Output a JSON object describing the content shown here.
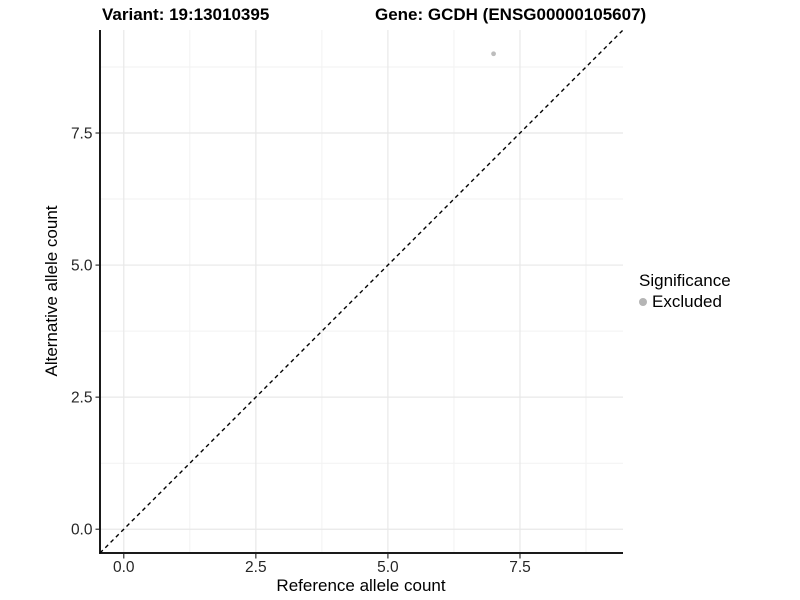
{
  "chart_data": {
    "type": "scatter",
    "title_left": "Variant: 19:13010395",
    "title_right": "Gene: GCDH (ENSG00000105607)",
    "xlabel": "Reference allele count",
    "ylabel": "Alternative allele count",
    "xlim": [
      -0.45,
      9.45
    ],
    "ylim": [
      -0.45,
      9.45
    ],
    "x_ticks": [
      0,
      2.5,
      5,
      7.5
    ],
    "x_tick_labels": [
      "0.0",
      "2.5",
      "5.0",
      "7.5"
    ],
    "y_ticks": [
      0,
      2.5,
      5,
      7.5
    ],
    "y_tick_labels": [
      "0.0",
      "2.5",
      "5.0",
      "7.5"
    ],
    "x_minor_ticks": [
      1.25,
      3.75,
      6.25,
      8.75
    ],
    "y_minor_ticks": [
      1.25,
      3.75,
      6.25,
      8.75
    ],
    "grid": "major+minor",
    "series": [
      {
        "name": "Excluded",
        "color": "#bdbdbd",
        "points": [
          {
            "x": 7,
            "y": 9
          }
        ]
      }
    ],
    "reference_line": {
      "slope": 1,
      "intercept": 0,
      "style": "dashed",
      "color": "#000000"
    },
    "legend": {
      "title": "Significance",
      "position": "right",
      "items": [
        {
          "label": "Excluded",
          "color": "#b5b5b5"
        }
      ]
    },
    "colors": {
      "axis_line": "#1a1a1a",
      "tick_mark": "#333333",
      "tick_label": "#262626",
      "grid_major": "#e8e8e8",
      "grid_minor": "#f2f2f2"
    }
  }
}
